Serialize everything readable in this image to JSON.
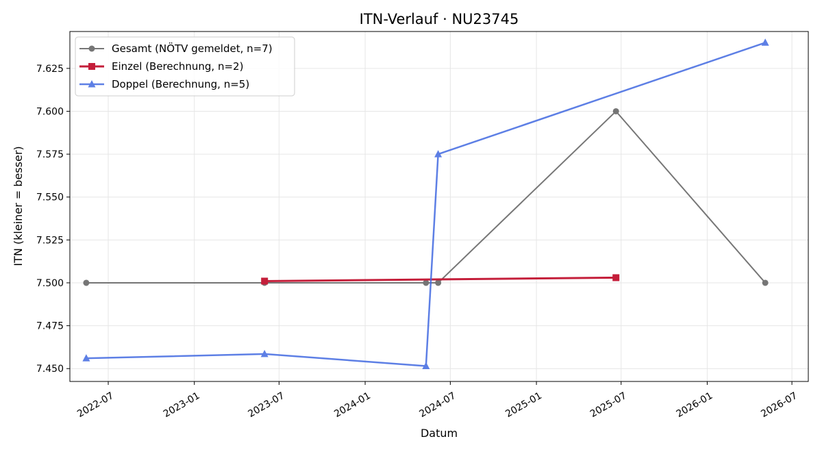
{
  "chart_data": {
    "type": "line",
    "title": "ITN-Verlauf · NU23745",
    "xlabel": "Datum",
    "ylabel": "ITN  (kleiner = besser)",
    "x_type": "date",
    "xlim": [
      "2022-04-10",
      "2026-08-05"
    ],
    "ylim": [
      7.4425,
      7.6465
    ],
    "x_ticks": [
      "2022-07-01",
      "2023-01-01",
      "2023-07-01",
      "2024-01-01",
      "2024-07-01",
      "2025-01-01",
      "2025-07-01",
      "2026-01-01",
      "2026-07-01"
    ],
    "x_tick_labels": [
      "2022-07",
      "2023-01",
      "2023-07",
      "2024-01",
      "2024-07",
      "2025-01",
      "2025-07",
      "2026-01",
      "2026-07"
    ],
    "y_ticks": [
      7.45,
      7.475,
      7.5,
      7.525,
      7.55,
      7.575,
      7.6,
      7.625
    ],
    "y_tick_labels": [
      "7.450",
      "7.475",
      "7.500",
      "7.525",
      "7.550",
      "7.575",
      "7.600",
      "7.625"
    ],
    "grid": true,
    "legend_position": "top-left",
    "series": [
      {
        "name": "Gesamt (NÖTV gemeldet, n=7)",
        "color": "#555555",
        "marker": "circle",
        "points": [
          {
            "x": "2022-05-15",
            "y": 7.5
          },
          {
            "x": "2023-05-31",
            "y": 7.5
          },
          {
            "x": "2024-05-10",
            "y": 7.5
          },
          {
            "x": "2024-06-05",
            "y": 7.5
          },
          {
            "x": "2025-06-20",
            "y": 7.6
          },
          {
            "x": "2026-05-05",
            "y": 7.5
          }
        ]
      },
      {
        "name": "Einzel (Berechnung, n=2)",
        "color": "#c41e3a",
        "marker": "square",
        "points": [
          {
            "x": "2023-05-31",
            "y": 7.501
          },
          {
            "x": "2025-06-20",
            "y": 7.503
          }
        ]
      },
      {
        "name": "Doppel (Berechnung, n=5)",
        "color": "#4169e1",
        "marker": "triangle",
        "points": [
          {
            "x": "2022-05-15",
            "y": 7.456
          },
          {
            "x": "2023-05-31",
            "y": 7.4585
          },
          {
            "x": "2024-05-10",
            "y": 7.4515
          },
          {
            "x": "2024-06-05",
            "y": 7.575
          },
          {
            "x": "2026-05-05",
            "y": 7.64
          }
        ]
      }
    ]
  }
}
